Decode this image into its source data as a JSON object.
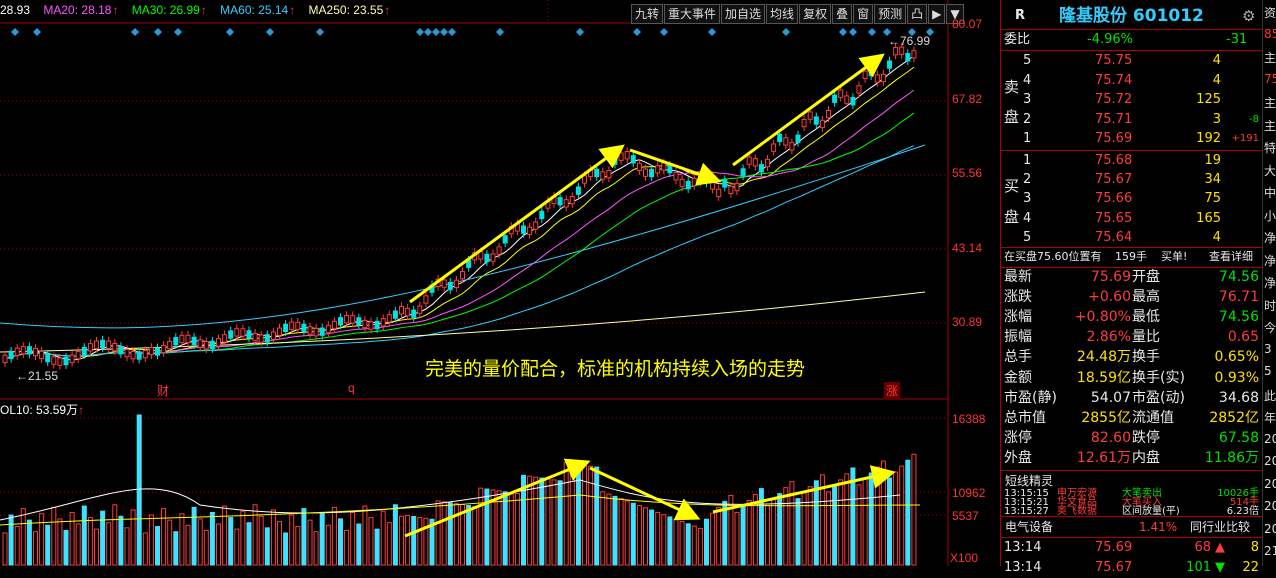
{
  "ma_legend": [
    {
      "label": "28.93",
      "color": "#ffffff"
    },
    {
      "label": "MA20: 28.18",
      "color": "#ff55ff"
    },
    {
      "label": "MA30: 26.99",
      "color": "#00ff00"
    },
    {
      "label": "MA60: 25.14",
      "color": "#33ccff"
    },
    {
      "label": "MA250: 23.55",
      "color": "#ffffaa"
    }
  ],
  "toolbar": [
    "九转",
    "重大事件",
    "加自选",
    "均线",
    "复权",
    "叠",
    "窗",
    "预测",
    "凸",
    "▶",
    "▼"
  ],
  "price_axis": [
    "80.07",
    "67.82",
    "55.56",
    "43.14",
    "30.89"
  ],
  "volume_axis": [
    "16388",
    "10962",
    "5537",
    "X100"
  ],
  "volume_title": "OL10: 53.59万",
  "volume_arrow": "↑",
  "annotation": "完美的量价配合，标准的机构持续入场的走势",
  "markers": {
    "high": "76.99",
    "low": "21.55",
    "cai": "财",
    "q": "q",
    "zhang": "涨"
  },
  "stock": {
    "flag": "R",
    "name": "隆基股份 601012"
  },
  "weibi": {
    "label": "委比",
    "pct": "-4.96%",
    "val": "-31"
  },
  "sell_label": [
    "卖",
    "盘"
  ],
  "buy_label": [
    "买",
    "盘"
  ],
  "sells": [
    {
      "n": "5",
      "p": "75.75",
      "v": "4",
      "d": ""
    },
    {
      "n": "4",
      "p": "75.74",
      "v": "4",
      "d": ""
    },
    {
      "n": "3",
      "p": "75.72",
      "v": "125",
      "d": ""
    },
    {
      "n": "2",
      "p": "75.71",
      "v": "3",
      "d": "-8"
    },
    {
      "n": "1",
      "p": "75.69",
      "v": "192",
      "d": "+191"
    }
  ],
  "buys": [
    {
      "n": "1",
      "p": "75.68",
      "v": "19"
    },
    {
      "n": "2",
      "p": "75.67",
      "v": "34"
    },
    {
      "n": "3",
      "p": "75.66",
      "v": "75"
    },
    {
      "n": "4",
      "p": "75.65",
      "v": "165"
    },
    {
      "n": "5",
      "p": "75.64",
      "v": "4"
    }
  ],
  "buyline": {
    "t1": "在买盘75.60位置有",
    "t2": "159手",
    "t3": "买单!",
    "t4": "查看详细"
  },
  "stats": [
    {
      "l1": "最新",
      "v1": "75.69",
      "c1": "red",
      "l2": "开盘",
      "v2": "74.56",
      "c2": "green"
    },
    {
      "l1": "涨跌",
      "v1": "+0.60",
      "c1": "red",
      "l2": "最高",
      "v2": "76.71",
      "c2": "red"
    },
    {
      "l1": "涨幅",
      "v1": "+0.80%",
      "c1": "red",
      "l2": "最低",
      "v2": "74.56",
      "c2": "green"
    },
    {
      "l1": "振幅",
      "v1": "2.86%",
      "c1": "red",
      "l2": "量比",
      "v2": "0.65",
      "c2": "red"
    },
    {
      "l1": "总手",
      "v1": "24.48万",
      "c1": "yellow",
      "l2": "换手",
      "v2": "0.65%",
      "c2": "yellow"
    },
    {
      "l1": "金额",
      "v1": "18.59亿",
      "c1": "yellow",
      "l2": "换手(实)",
      "v2": "0.93%",
      "c2": "yellow"
    },
    {
      "l1": "市盈(静)",
      "v1": "54.07",
      "c1": "white",
      "l2": "市盈(动)",
      "v2": "34.68",
      "c2": "white"
    },
    {
      "l1": "总市值",
      "v1": "2855亿",
      "c1": "yellow",
      "l2": "流通值",
      "v2": "2852亿",
      "c2": "yellow"
    },
    {
      "l1": "涨停",
      "v1": "82.60",
      "c1": "red",
      "l2": "跌停",
      "v2": "67.58",
      "c2": "green"
    },
    {
      "l1": "外盘",
      "v1": "12.61万",
      "c1": "red",
      "l2": "内盘",
      "v2": "11.86万",
      "c2": "green"
    }
  ],
  "sprite_title": "短线精灵",
  "sprites": [
    {
      "t": "13:15:15",
      "n": "申万宏源",
      "e": "大笔卖出",
      "v": "10026手",
      "ec": "green"
    },
    {
      "t": "13:15:21",
      "n": "华文食品",
      "e": "大笔买入",
      "v": "514手",
      "ec": "red"
    },
    {
      "t": "13:15:27",
      "n": "奥飞数据",
      "e": "区间放量(平)",
      "v": "6.23倍",
      "ec": "white"
    }
  ],
  "sector": {
    "name": "电气设备",
    "pct": "1.41%",
    "cmp": "同行业比较"
  },
  "ticks": [
    {
      "t": "13:14",
      "p": "75.69",
      "v": "68",
      "n": "8"
    },
    {
      "t": "13:14",
      "p": "75.67",
      "v": "101",
      "n": "22"
    }
  ],
  "far": [
    "资",
    "85",
    "主",
    "75",
    "主",
    "主",
    "特",
    "大",
    "中",
    "小",
    "净",
    "净",
    "净",
    "时",
    "今",
    "3",
    "5",
    "此",
    "年",
    "20",
    "20",
    "20",
    "20",
    "20",
    "21"
  ],
  "colors": {
    "up": "#ff3b3b",
    "down": "#00e0e0",
    "arrow": "#ffff00"
  }
}
